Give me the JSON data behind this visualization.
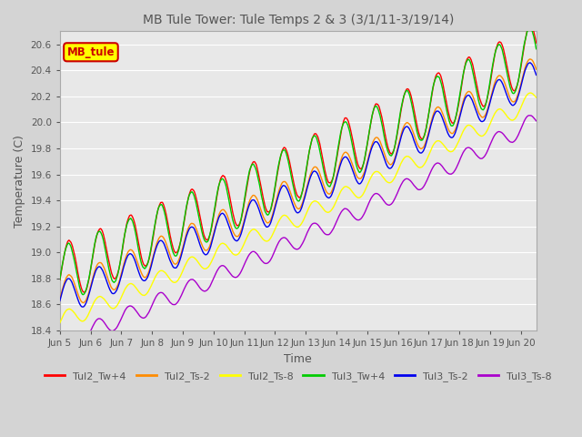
{
  "title": "MB Tule Tower: Tule Temps 2 & 3 (3/1/11-3/19/14)",
  "xlabel": "Time",
  "ylabel": "Temperature (C)",
  "ylim": [
    18.4,
    20.7
  ],
  "xlim": [
    0,
    15.5
  ],
  "xtick_labels": [
    "Jun 5",
    "Jun 6",
    "Jun 7",
    "Jun 8",
    "Jun 9",
    "Jun 10",
    "Jun 11",
    "Jun 12",
    "Jun 13",
    "Jun 14",
    "Jun 15",
    "Jun 16",
    "Jun 17",
    "Jun 18",
    "Jun 19",
    "Jun 20"
  ],
  "yticks": [
    18.4,
    18.6,
    18.8,
    19.0,
    19.2,
    19.4,
    19.6,
    19.8,
    20.0,
    20.2,
    20.4,
    20.6
  ],
  "series_colors": {
    "Tul2_Tw+4": "#ff0000",
    "Tul2_Ts-2": "#ff8c00",
    "Tul2_Ts-8": "#ffff00",
    "Tul3_Tw+4": "#00cc00",
    "Tul3_Ts-2": "#0000ee",
    "Tul3_Ts-8": "#aa00cc"
  },
  "background_color": "#e8e8e8",
  "fig_background": "#d4d4d4",
  "grid_color": "#ffffff",
  "legend_box_facecolor": "#ffff00",
  "legend_box_edgecolor": "#cc0000",
  "legend_box_text": "MB_tule",
  "legend_box_text_color": "#cc0000",
  "title_color": "#555555",
  "label_color": "#555555",
  "tick_color": "#555555"
}
